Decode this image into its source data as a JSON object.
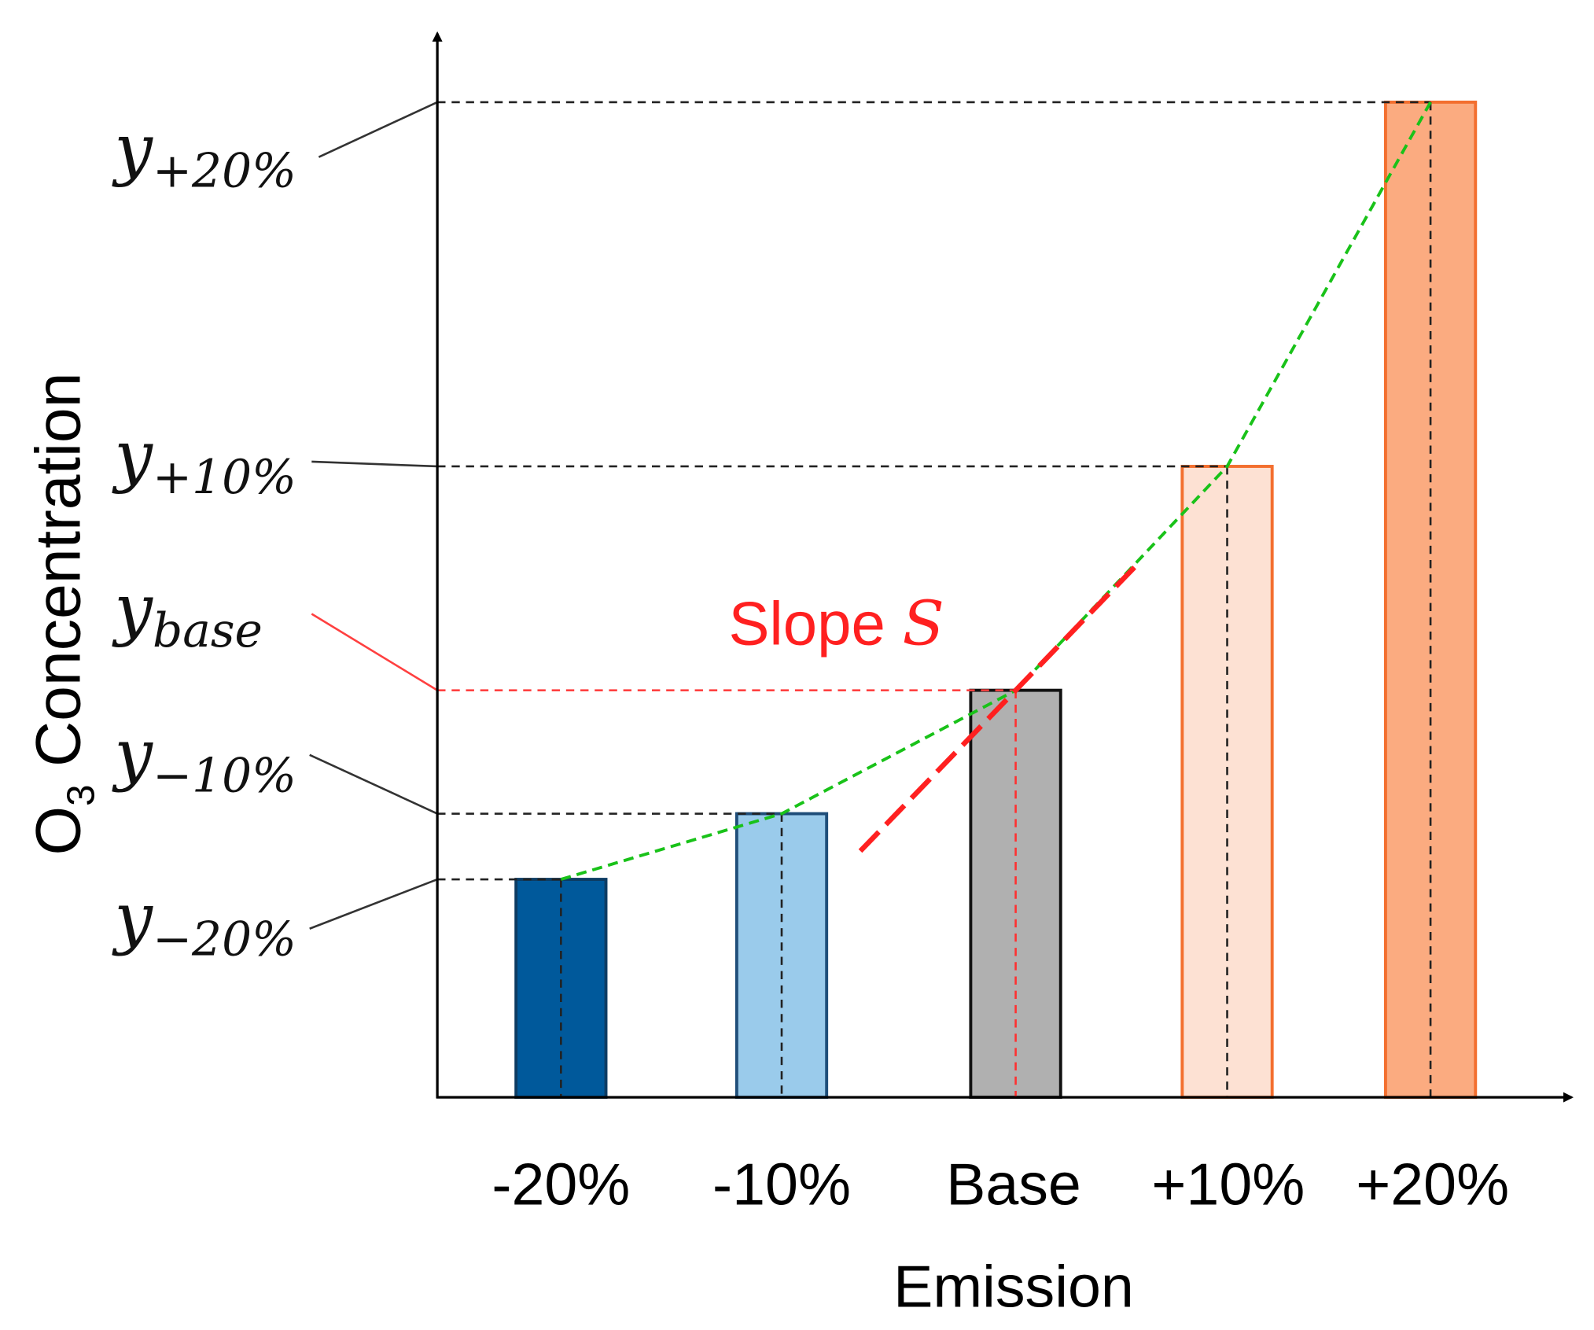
{
  "chart_data": {
    "type": "bar",
    "title": "",
    "xlabel": "Emission",
    "ylabel_main": "O",
    "ylabel_sub": "3",
    "ylabel_rest": " Concentration",
    "categories": [
      "-20%",
      "-10%",
      "Base",
      "+10%",
      "+20%"
    ],
    "values": [
      21.9,
      28.5,
      40.9,
      63.4,
      100
    ],
    "ylim": [
      0,
      106.6
    ],
    "grid": false,
    "bar_fill": [
      "#00599b",
      "#9acbeb",
      "#b0b0b0",
      "#fde1d3",
      "#fbab80"
    ],
    "bar_stroke": [
      "#0d3c63",
      "#1f4e79",
      "#111111",
      "#f36f2f",
      "#f36f2f"
    ],
    "y_markers": [
      {
        "base": "y",
        "sub": "−20%",
        "color": "#333333"
      },
      {
        "base": "y",
        "sub": "−10%",
        "color": "#333333"
      },
      {
        "base": "y",
        "sub": "base",
        "color": "#ff4040"
      },
      {
        "base": "y",
        "sub": "+10%",
        "color": "#333333"
      },
      {
        "base": "y",
        "sub": "+20%",
        "color": "#333333"
      }
    ],
    "curve_color": "#19c219",
    "tangent": {
      "label": "Slope ",
      "symbol": "S",
      "color": "#ff2020",
      "slope_units_per_category": 22.0
    }
  }
}
